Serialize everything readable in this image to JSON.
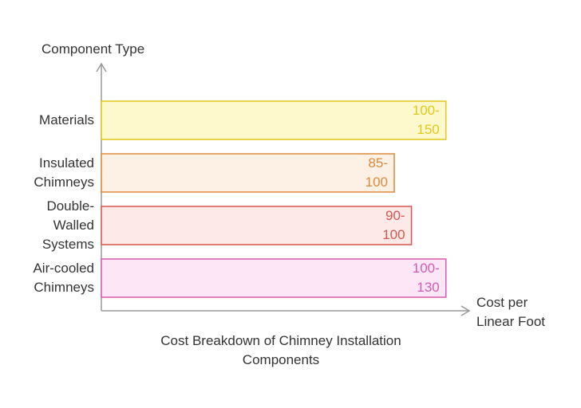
{
  "chart_data": {
    "type": "bar",
    "orientation": "horizontal",
    "title": "Cost Breakdown of Chimney Installation Components",
    "y_label": "Component Type",
    "x_label": "Cost per Linear Foot",
    "categories": [
      "Materials",
      "Insulated Chimneys",
      "Double-Walled Systems",
      "Air-cooled Chimneys"
    ],
    "values": [
      100,
      85,
      90,
      100
    ],
    "value_labels": [
      "100-150",
      "85-100",
      "90-100",
      "100-130"
    ],
    "colors": [
      "#e3c81a",
      "#dc8a3c",
      "#d9564f",
      "#d65bb4"
    ],
    "fills": [
      "#fdf9cc",
      "#fdf1e5",
      "#fde9e7",
      "#fde7f6"
    ],
    "xlim": [
      0,
      107
    ]
  }
}
